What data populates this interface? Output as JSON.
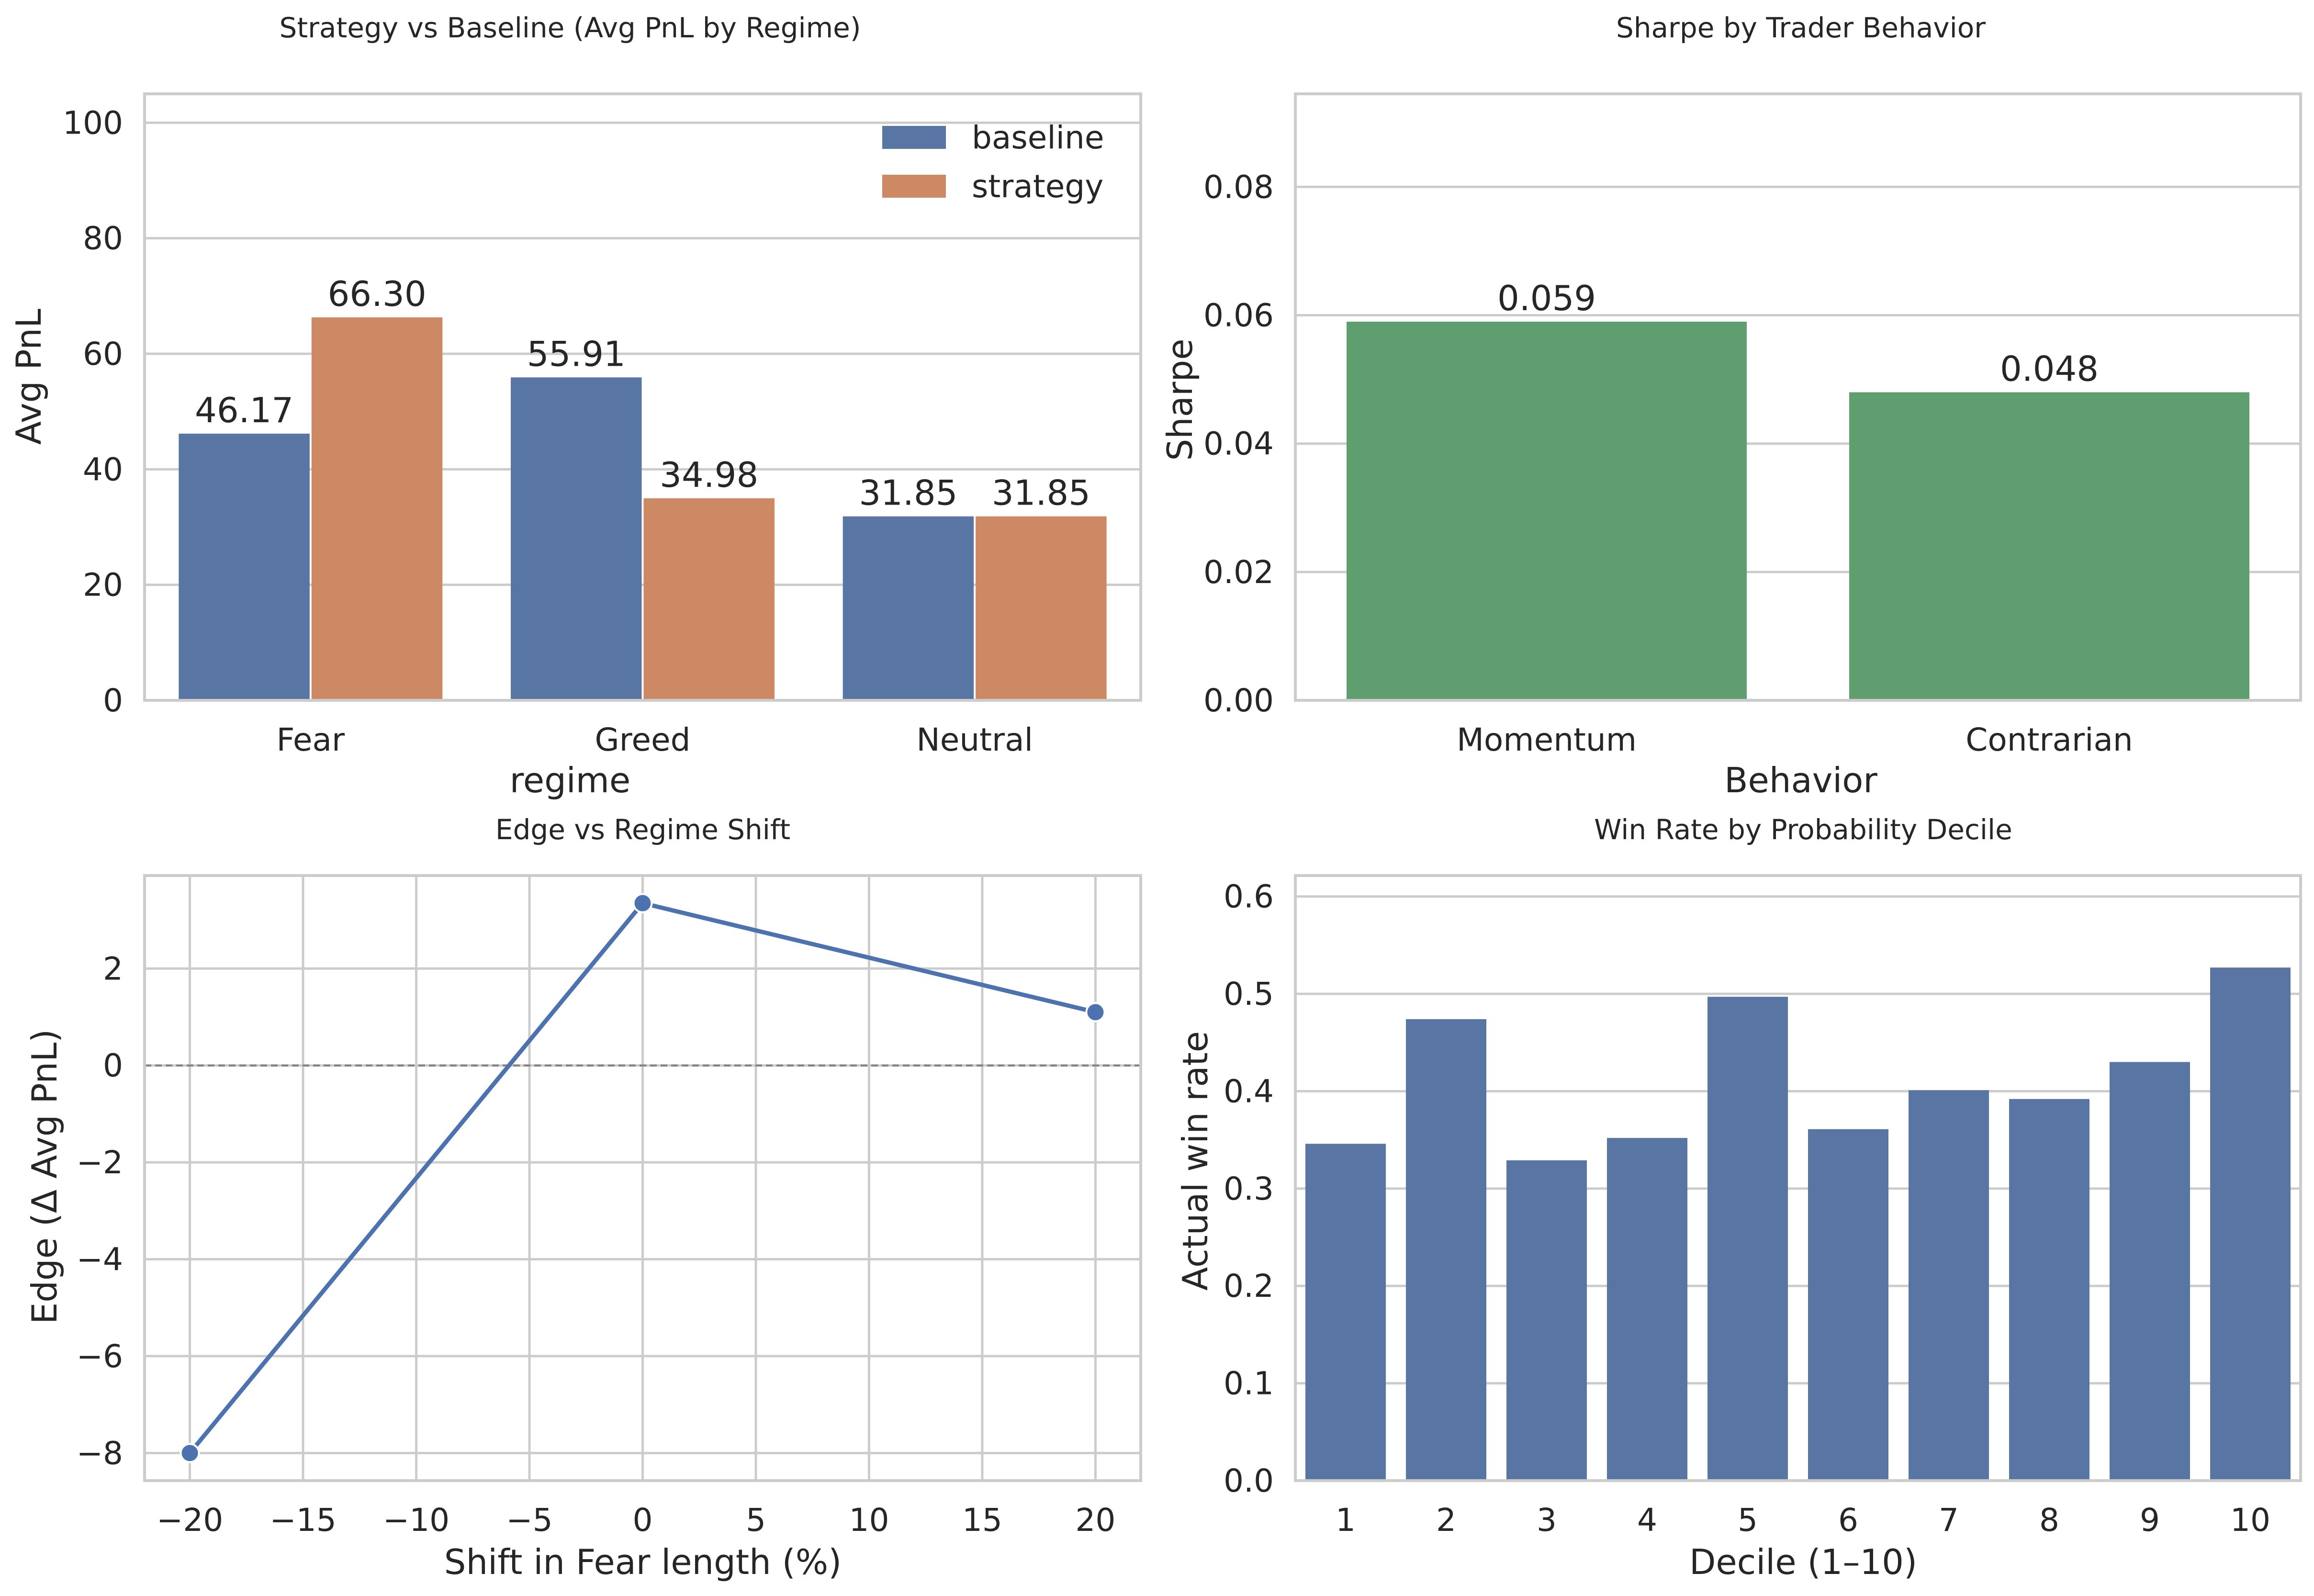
{
  "chart_data": [
    {
      "type": "bar",
      "title": "Strategy vs Baseline (Avg PnL by Regime)",
      "xlabel": "regime",
      "ylabel": "Avg PnL",
      "categories": [
        "Fear",
        "Greed",
        "Neutral"
      ],
      "series": [
        {
          "name": "baseline",
          "values": [
            46.17,
            55.91,
            31.85
          ],
          "color": "#5975a4"
        },
        {
          "name": "strategy",
          "values": [
            66.3,
            34.98,
            31.85
          ],
          "color": "#cc8963"
        }
      ],
      "data_labels": [
        "46.17",
        "55.91",
        "31.85",
        "66.30",
        "34.98",
        "31.85"
      ],
      "ylim": [
        0,
        105
      ],
      "yticks": [
        0,
        20,
        40,
        60,
        80,
        100
      ],
      "grid": true,
      "legend": "top-right"
    },
    {
      "type": "bar",
      "title": "Sharpe by Trader Behavior",
      "xlabel": "Behavior",
      "ylabel": "Sharpe",
      "categories": [
        "Momentum",
        "Contrarian"
      ],
      "values": [
        0.059,
        0.048
      ],
      "data_labels": [
        "0.059",
        "0.048"
      ],
      "color": "#5f9e6e",
      "ylim": [
        0,
        0.0945
      ],
      "yticks": [
        0.0,
        0.02,
        0.04,
        0.06,
        0.08
      ],
      "ytick_labels": [
        "0.00",
        "0.02",
        "0.04",
        "0.06",
        "0.08"
      ],
      "grid": true
    },
    {
      "type": "line",
      "title": "Edge vs Regime Shift",
      "xlabel": "Shift in Fear length (%)",
      "ylabel": "Edge (Δ Avg PnL)",
      "x": [
        -20,
        0,
        20
      ],
      "y": [
        -8.0,
        3.35,
        1.1
      ],
      "color": "#4c72b0",
      "xlim": [
        -22,
        22
      ],
      "ylim": [
        -8.57,
        3.92
      ],
      "xticks": [
        -20,
        -15,
        -10,
        -5,
        0,
        5,
        10,
        15,
        20
      ],
      "xtick_labels": [
        "−20",
        "−15",
        "−10",
        "−5",
        "0",
        "5",
        "10",
        "15",
        "20"
      ],
      "yticks": [
        -8,
        -6,
        -4,
        -2,
        0,
        2
      ],
      "ytick_labels": [
        "−8",
        "−6",
        "−4",
        "−2",
        "0",
        "2"
      ],
      "reference_line": {
        "y": 0,
        "style": "dashed",
        "color": "#808080"
      },
      "grid": true
    },
    {
      "type": "bar",
      "title": "Win Rate by Probability Decile",
      "xlabel": "Decile (1–10)",
      "ylabel": "Actual win rate",
      "categories": [
        "1",
        "2",
        "3",
        "4",
        "5",
        "6",
        "7",
        "8",
        "9",
        "10"
      ],
      "values": [
        0.346,
        0.474,
        0.329,
        0.352,
        0.497,
        0.361,
        0.401,
        0.392,
        0.43,
        0.527
      ],
      "color": "#5975a4",
      "ylim": [
        0,
        0.6215
      ],
      "yticks": [
        0.0,
        0.1,
        0.2,
        0.3,
        0.4,
        0.5,
        0.6
      ],
      "ytick_labels": [
        "0.0",
        "0.1",
        "0.2",
        "0.3",
        "0.4",
        "0.5",
        "0.6"
      ],
      "grid": true
    }
  ]
}
